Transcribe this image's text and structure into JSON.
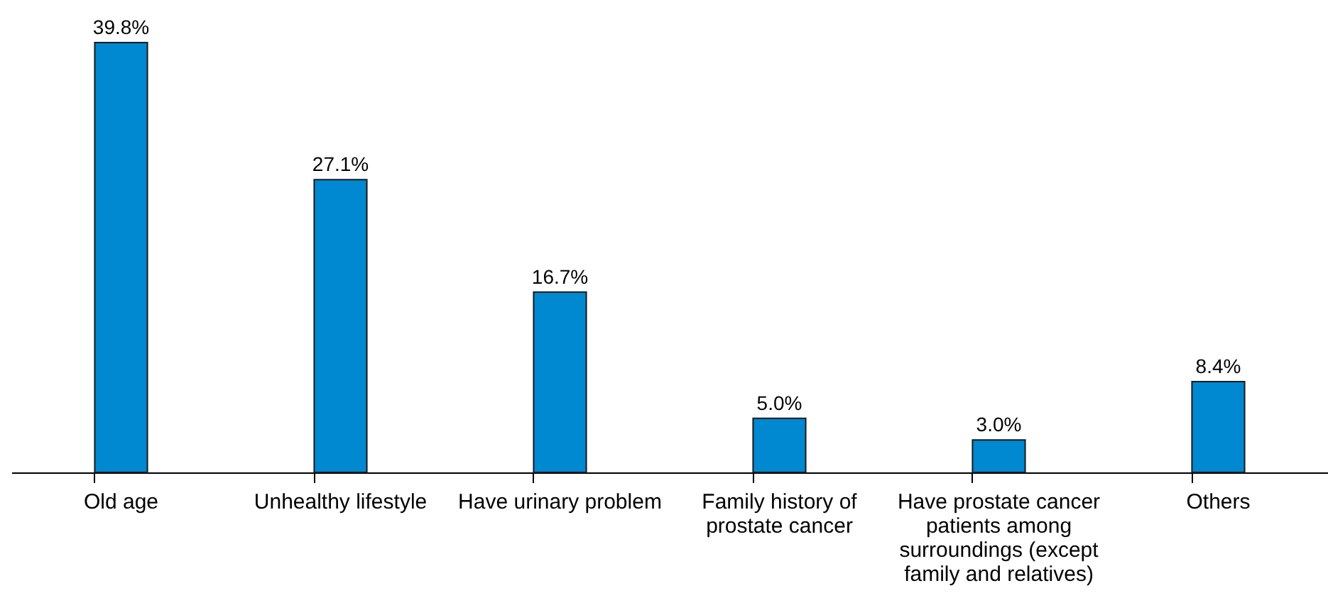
{
  "chart_data": {
    "type": "bar",
    "categories": [
      "Old age",
      "Unhealthy lifestyle",
      "Have urinary problem",
      "Family history of prostate cancer",
      "Have prostate cancer patients among surroundings (except family and relatives)",
      "Others"
    ],
    "values": [
      39.8,
      27.1,
      16.7,
      5.0,
      3.0,
      8.4
    ],
    "value_labels": [
      "39.8%",
      "27.1%",
      "16.7%",
      "5.0%",
      "3.0%",
      "8.4%"
    ],
    "color": "#0088d1"
  }
}
